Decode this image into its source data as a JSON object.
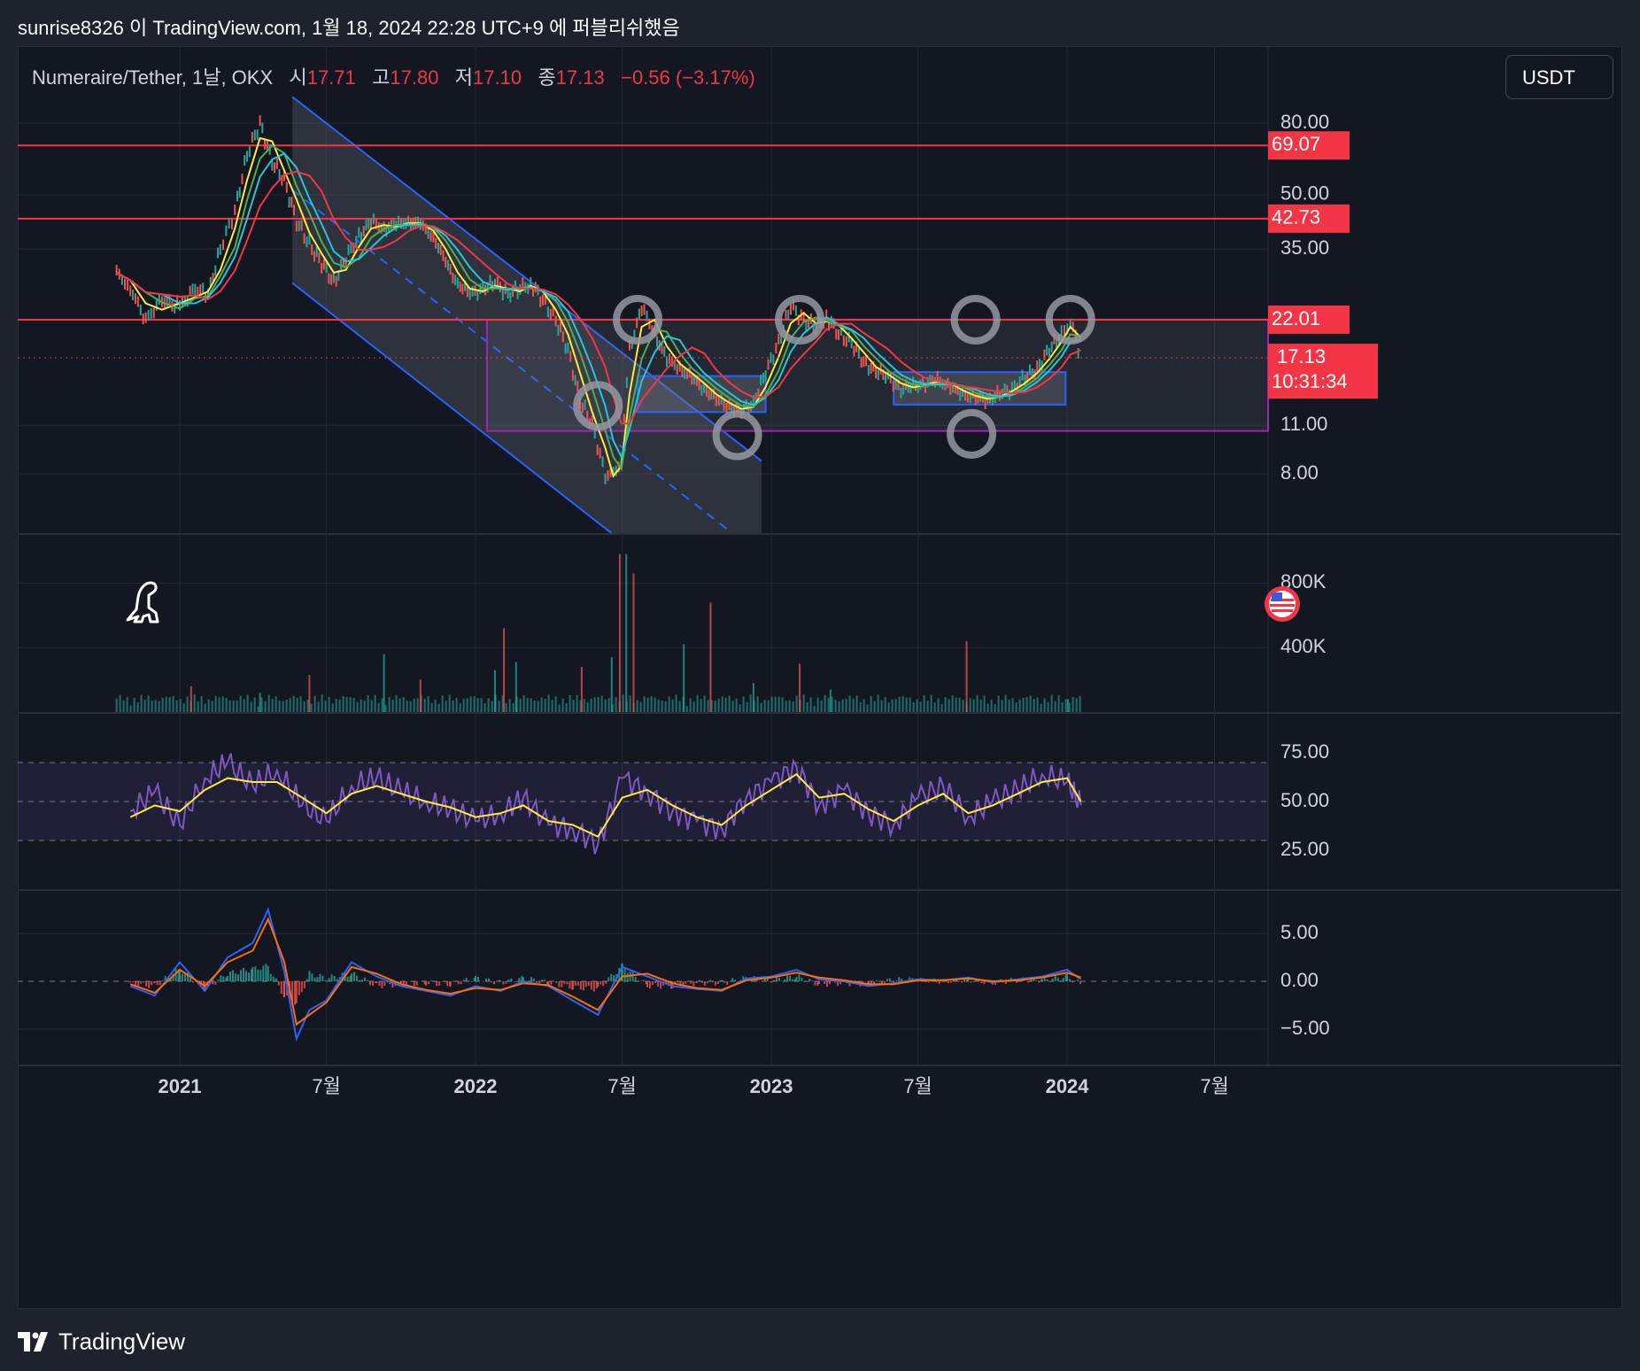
{
  "header": {
    "publisher_line": "sunrise8326 이 TradingView.com, 1월 18, 2024 22:28 UTC+9 에 퍼블리쉬했음"
  },
  "legend": {
    "symbol": "Numeraire/Tether, 1날, OKX",
    "open_label": "시",
    "open_value": "17.71",
    "high_label": "고",
    "high_value": "17.80",
    "low_label": "저",
    "low_value": "17.10",
    "close_label": "종",
    "close_value": "17.13",
    "change": "−0.56 (−3.17%)"
  },
  "currency_button": {
    "label": "USDT"
  },
  "footer": {
    "brand": "TradingView"
  },
  "colors": {
    "background": "#131722",
    "frame": "#1e222d",
    "grid": "#242833",
    "up": "#26a69a",
    "down": "#ef5350",
    "alert_red": "#f23645",
    "channel_blue": "#2962ff",
    "range_purple": "#9c27b0",
    "ma_yellow": "#ffeb3b",
    "ma_green": "#4caf50",
    "ma_cyan": "#26c6da",
    "ma_red": "#f23645",
    "rsi_purple": "#7e57c2",
    "macd_blue": "#2962ff",
    "macd_orange": "#ff6d00"
  },
  "icons": {
    "watermark": "dinosaur-icon",
    "event_flag": "us-flag-icon",
    "brand_logo": "tradingview-logo-icon"
  },
  "chart_data": [
    {
      "type": "line",
      "panel": "price",
      "scale": "log",
      "y_ticks": [
        "80.00",
        "50.00",
        "35.00",
        "11.00",
        "8.00"
      ],
      "y_tick_values": [
        80,
        50,
        35,
        11,
        8
      ],
      "x_ticks": [
        "2021",
        "7월",
        "2022",
        "7월",
        "2023",
        "7월",
        "2024",
        "7월"
      ],
      "x_tick_dates": [
        "2021-01-01",
        "2021-07-01",
        "2022-01-01",
        "2022-07-01",
        "2023-01-01",
        "2023-07-01",
        "2024-01-01",
        "2024-07-01"
      ],
      "price_levels": [
        {
          "label": "69.07",
          "value": 69.07
        },
        {
          "label": "42.73",
          "value": 42.73
        },
        {
          "label": "22.01",
          "value": 22.01
        }
      ],
      "range_box": {
        "top": 22.01,
        "bottom": 10.6,
        "start": "2022-01-15"
      },
      "current_price": {
        "label": "17.13",
        "value": 17.13,
        "countdown": "10:31:34"
      },
      "price_series": {
        "dates": [
          "2020-10-15",
          "2020-11-01",
          "2020-11-20",
          "2020-12-10",
          "2021-01-01",
          "2021-01-20",
          "2021-02-05",
          "2021-02-20",
          "2021-03-10",
          "2021-03-25",
          "2021-04-10",
          "2021-04-25",
          "2021-05-10",
          "2021-05-25",
          "2021-06-10",
          "2021-06-25",
          "2021-07-10",
          "2021-07-25",
          "2021-08-10",
          "2021-08-25",
          "2021-09-10",
          "2021-09-25",
          "2021-10-10",
          "2021-10-25",
          "2021-11-10",
          "2021-11-25",
          "2021-12-10",
          "2021-12-25",
          "2022-01-10",
          "2022-01-25",
          "2022-02-10",
          "2022-02-25",
          "2022-03-10",
          "2022-03-25",
          "2022-04-10",
          "2022-04-25",
          "2022-05-10",
          "2022-05-25",
          "2022-06-10",
          "2022-06-20",
          "2022-06-30",
          "2022-07-10",
          "2022-07-25",
          "2022-08-10",
          "2022-08-25",
          "2022-09-10",
          "2022-09-25",
          "2022-10-10",
          "2022-10-25",
          "2022-11-10",
          "2022-11-25",
          "2022-12-10",
          "2022-12-25",
          "2023-01-10",
          "2023-01-25",
          "2023-02-10",
          "2023-02-25",
          "2023-03-10",
          "2023-03-25",
          "2023-04-10",
          "2023-04-25",
          "2023-05-10",
          "2023-05-25",
          "2023-06-10",
          "2023-06-25",
          "2023-07-10",
          "2023-07-25",
          "2023-08-10",
          "2023-08-25",
          "2023-09-10",
          "2023-09-25",
          "2023-10-10",
          "2023-10-25",
          "2023-11-10",
          "2023-11-25",
          "2023-12-10",
          "2023-12-25",
          "2024-01-05",
          "2024-01-18"
        ],
        "close": [
          30,
          27,
          22,
          25,
          24,
          27,
          26,
          35,
          45,
          65,
          80,
          62,
          55,
          42,
          36,
          32,
          28,
          33,
          38,
          42,
          40,
          41,
          42,
          41,
          38,
          32,
          28,
          26,
          27,
          28,
          26,
          27,
          28,
          25,
          22,
          18,
          13,
          11,
          8,
          7.8,
          9,
          18,
          24,
          20,
          17,
          16,
          15,
          14,
          13,
          12.5,
          12,
          12.8,
          15.5,
          19,
          24,
          22,
          21,
          22.5,
          20,
          19,
          16.5,
          15.8,
          15,
          14,
          14.2,
          14.5,
          14.8,
          14.2,
          13.5,
          13.2,
          13,
          13.5,
          14,
          15,
          16,
          18,
          20,
          22,
          17.13
        ]
      },
      "channel": {
        "upper_start": [
          "2021-05-20",
          95
        ],
        "upper_end": [
          "2022-12-20",
          8.7
        ],
        "lower_start": [
          "2021-05-20",
          28
        ],
        "lower_end": [
          "2022-12-20",
          2.5
        ]
      },
      "annotations": [
        {
          "shape": "circle",
          "date": "2022-07-20",
          "value": 22
        },
        {
          "shape": "circle",
          "date": "2023-02-05",
          "value": 22
        },
        {
          "shape": "circle",
          "date": "2023-09-10",
          "value": 22
        },
        {
          "shape": "circle",
          "date": "2024-01-05",
          "value": 22
        },
        {
          "shape": "circle",
          "date": "2022-06-01",
          "value": 12.5
        },
        {
          "shape": "circle",
          "date": "2022-11-20",
          "value": 10.3
        },
        {
          "shape": "circle",
          "date": "2023-09-05",
          "value": 10.4
        }
      ]
    },
    {
      "type": "bar",
      "panel": "volume",
      "y_ticks": [
        "800K",
        "400K"
      ],
      "y_tick_values": [
        800000,
        400000
      ],
      "spikes": [
        {
          "date": "2021-01-15",
          "value": 160000
        },
        {
          "date": "2021-04-10",
          "value": 120000
        },
        {
          "date": "2021-06-10",
          "value": 230000
        },
        {
          "date": "2021-09-10",
          "value": 360000
        },
        {
          "date": "2021-10-25",
          "value": 200000
        },
        {
          "date": "2022-01-25",
          "value": 260000
        },
        {
          "date": "2022-02-05",
          "value": 520000
        },
        {
          "date": "2022-02-20",
          "value": 310000
        },
        {
          "date": "2022-05-12",
          "value": 280000
        },
        {
          "date": "2022-06-18",
          "value": 340000
        },
        {
          "date": "2022-06-28",
          "value": 980000
        },
        {
          "date": "2022-07-06",
          "value": 980000
        },
        {
          "date": "2022-07-15",
          "value": 860000
        },
        {
          "date": "2022-09-15",
          "value": 420000
        },
        {
          "date": "2022-10-18",
          "value": 680000
        },
        {
          "date": "2022-12-10",
          "value": 180000
        },
        {
          "date": "2023-02-05",
          "value": 300000
        },
        {
          "date": "2023-03-15",
          "value": 140000
        },
        {
          "date": "2023-08-30",
          "value": 440000
        },
        {
          "date": "2024-01-02",
          "value": 80000
        }
      ]
    },
    {
      "type": "line",
      "panel": "rsi",
      "y_ticks": [
        "75.00",
        "50.00",
        "25.00"
      ],
      "y_tick_values": [
        75,
        50,
        25
      ],
      "band": [
        30,
        70
      ],
      "dates": [
        "2020-11-01",
        "2020-12-01",
        "2021-01-01",
        "2021-02-01",
        "2021-03-01",
        "2021-04-01",
        "2021-05-01",
        "2021-06-01",
        "2021-07-01",
        "2021-08-01",
        "2021-09-01",
        "2021-10-01",
        "2021-11-01",
        "2021-12-01",
        "2022-01-01",
        "2022-02-01",
        "2022-03-01",
        "2022-04-01",
        "2022-05-01",
        "2022-06-01",
        "2022-07-01",
        "2022-08-01",
        "2022-09-01",
        "2022-10-01",
        "2022-11-01",
        "2022-12-01",
        "2023-01-01",
        "2023-02-01",
        "2023-03-01",
        "2023-04-01",
        "2023-05-01",
        "2023-06-01",
        "2023-07-01",
        "2023-08-01",
        "2023-09-01",
        "2023-10-01",
        "2023-11-01",
        "2023-12-01",
        "2024-01-01",
        "2024-01-18"
      ],
      "rsi": [
        45,
        55,
        38,
        62,
        70,
        58,
        66,
        48,
        40,
        58,
        62,
        55,
        50,
        46,
        40,
        44,
        52,
        38,
        36,
        28,
        62,
        55,
        45,
        40,
        36,
        52,
        60,
        68,
        48,
        56,
        44,
        38,
        52,
        58,
        42,
        50,
        56,
        64,
        60,
        48
      ],
      "rsi_ma": [
        42,
        48,
        45,
        56,
        62,
        60,
        60,
        52,
        44,
        54,
        58,
        54,
        50,
        47,
        42,
        44,
        48,
        40,
        38,
        32,
        52,
        56,
        48,
        42,
        38,
        48,
        56,
        64,
        52,
        54,
        46,
        40,
        48,
        54,
        44,
        48,
        54,
        60,
        62,
        50
      ]
    },
    {
      "type": "line",
      "panel": "macd",
      "y_ticks": [
        "5.00",
        "0.00",
        "−5.00"
      ],
      "y_tick_values": [
        5,
        0,
        -5
      ],
      "dates": [
        "2020-11-01",
        "2020-12-01",
        "2021-01-01",
        "2021-02-01",
        "2021-03-01",
        "2021-04-01",
        "2021-04-20",
        "2021-05-10",
        "2021-05-25",
        "2021-06-10",
        "2021-07-01",
        "2021-08-01",
        "2021-09-01",
        "2021-10-01",
        "2021-11-01",
        "2021-12-01",
        "2022-01-01",
        "2022-02-01",
        "2022-03-01",
        "2022-04-01",
        "2022-05-01",
        "2022-06-01",
        "2022-07-01",
        "2022-08-01",
        "2022-09-01",
        "2022-10-01",
        "2022-11-01",
        "2022-12-01",
        "2023-01-01",
        "2023-02-01",
        "2023-03-01",
        "2023-04-01",
        "2023-05-01",
        "2023-06-01",
        "2023-07-01",
        "2023-08-01",
        "2023-09-01",
        "2023-10-01",
        "2023-11-01",
        "2023-12-01",
        "2024-01-01",
        "2024-01-18"
      ],
      "macd": [
        -0.5,
        -1.5,
        2,
        -1,
        2.5,
        4,
        7.5,
        1,
        -6,
        -3,
        -2,
        2,
        0.5,
        -0.5,
        -1,
        -1.5,
        -0.5,
        -1,
        0,
        -0.5,
        -2,
        -3.5,
        1.5,
        0.5,
        -0.5,
        -0.8,
        -1,
        0.3,
        0.5,
        1.2,
        0.2,
        0,
        -0.5,
        -0.2,
        0.2,
        0.1,
        0.4,
        -0.1,
        0.2,
        0.5,
        1.2,
        0.2
      ],
      "signal": [
        -0.3,
        -1.2,
        1.2,
        -0.5,
        2,
        3.2,
        6.5,
        2,
        -4.5,
        -3.5,
        -2.2,
        1.5,
        0.8,
        -0.3,
        -0.9,
        -1.3,
        -0.7,
        -0.9,
        -0.2,
        -0.4,
        -1.6,
        -3,
        0.5,
        0.8,
        -0.2,
        -0.7,
        -0.9,
        0.1,
        0.4,
        0.9,
        0.4,
        0.1,
        -0.3,
        -0.3,
        0.1,
        0.1,
        0.3,
        0,
        0.1,
        0.4,
        0.9,
        0.4
      ]
    }
  ]
}
